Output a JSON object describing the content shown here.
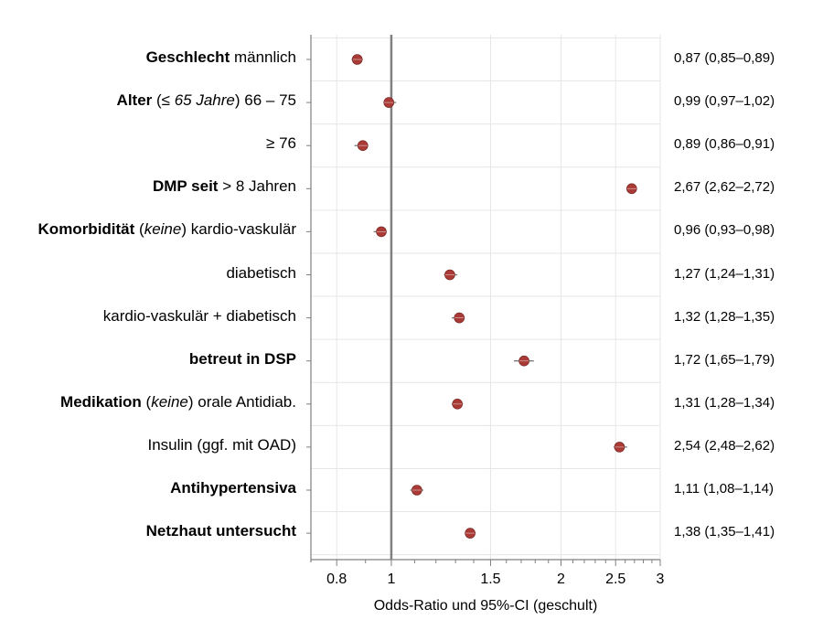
{
  "chart_data": {
    "type": "scatter",
    "x_scale": "log",
    "xlim": [
      0.72,
      3.0
    ],
    "xticks": [
      0.8,
      1,
      1.5,
      2,
      2.5,
      3
    ],
    "xtick_labels": [
      "0.8",
      "1",
      "1.5",
      "2",
      "2.5",
      "3"
    ],
    "reference_line": 1,
    "xlabel": "Odds-Ratio und 95%-CI (geschult)",
    "colors": {
      "point": "#a93a35",
      "reference": "#808080",
      "grid": "#e6e6e6",
      "ci": "#7a7a7a"
    },
    "rows": [
      {
        "parts": [
          {
            "t": "Geschlecht",
            "s": "b"
          },
          {
            "t": " männlich",
            "s": ""
          }
        ],
        "or": 0.87,
        "lo": 0.85,
        "hi": 0.89,
        "ci_text": "0,87 (0,85–0,89)"
      },
      {
        "parts": [
          {
            "t": "Alter",
            "s": "b"
          },
          {
            "t": " (",
            "s": ""
          },
          {
            "t": "≤ 65 Jahre",
            "s": "i"
          },
          {
            "t": ") 66 – 75",
            "s": ""
          }
        ],
        "or": 0.99,
        "lo": 0.97,
        "hi": 1.02,
        "ci_text": "0,99 (0,97–1,02)"
      },
      {
        "parts": [
          {
            "t": "≥ 76",
            "s": ""
          }
        ],
        "or": 0.89,
        "lo": 0.86,
        "hi": 0.91,
        "ci_text": "0,89 (0,86–0,91)"
      },
      {
        "parts": [
          {
            "t": "DMP seit",
            "s": "b"
          },
          {
            "t": " > 8 Jahren",
            "s": ""
          }
        ],
        "or": 2.67,
        "lo": 2.62,
        "hi": 2.72,
        "ci_text": "2,67 (2,62–2,72)"
      },
      {
        "parts": [
          {
            "t": "Komorbidität",
            "s": "b"
          },
          {
            "t": " (",
            "s": ""
          },
          {
            "t": "keine",
            "s": "i"
          },
          {
            "t": ") kardio-vaskulär",
            "s": ""
          }
        ],
        "or": 0.96,
        "lo": 0.93,
        "hi": 0.98,
        "ci_text": "0,96 (0,93–0,98)"
      },
      {
        "parts": [
          {
            "t": "diabetisch",
            "s": ""
          }
        ],
        "or": 1.27,
        "lo": 1.24,
        "hi": 1.31,
        "ci_text": "1,27 (1,24–1,31)"
      },
      {
        "parts": [
          {
            "t": "kardio-vaskulär + diabetisch",
            "s": ""
          }
        ],
        "or": 1.32,
        "lo": 1.28,
        "hi": 1.35,
        "ci_text": "1,32 (1,28–1,35)"
      },
      {
        "parts": [
          {
            "t": "betreut in DSP",
            "s": "b"
          }
        ],
        "or": 1.72,
        "lo": 1.65,
        "hi": 1.79,
        "ci_text": "1,72 (1,65–1,79)"
      },
      {
        "parts": [
          {
            "t": "Medikation",
            "s": "b"
          },
          {
            "t": " (",
            "s": ""
          },
          {
            "t": "keine",
            "s": "i"
          },
          {
            "t": ") orale Antidiab.",
            "s": ""
          }
        ],
        "or": 1.31,
        "lo": 1.28,
        "hi": 1.34,
        "ci_text": "1,31 (1,28–1,34)"
      },
      {
        "parts": [
          {
            "t": "Insulin (ggf. mit OAD)",
            "s": ""
          }
        ],
        "or": 2.54,
        "lo": 2.48,
        "hi": 2.62,
        "ci_text": "2,54 (2,48–2,62)"
      },
      {
        "parts": [
          {
            "t": "Antihypertensiva",
            "s": "b"
          }
        ],
        "or": 1.11,
        "lo": 1.08,
        "hi": 1.14,
        "ci_text": "1,11 (1,08–1,14)"
      },
      {
        "parts": [
          {
            "t": "Netzhaut untersucht",
            "s": "b"
          }
        ],
        "or": 1.38,
        "lo": 1.35,
        "hi": 1.41,
        "ci_text": "1,38 (1,35–1,41)"
      }
    ]
  }
}
